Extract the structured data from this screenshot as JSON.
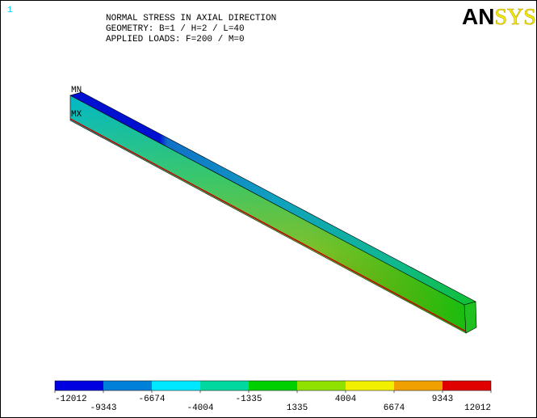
{
  "window_number": "1",
  "header": {
    "lines": [
      "NORMAL STRESS IN AXIAL DIRECTION",
      "GEOMETRY: B=1 / H=2 / L=40",
      "APPLIED LOADS: F=200 / M=0"
    ]
  },
  "logo": {
    "parts": [
      "AN",
      "SYS"
    ]
  },
  "markers": {
    "min": "MN",
    "max": "MX"
  },
  "contour_legend": {
    "colors": [
      "#0000e0",
      "#0080d8",
      "#00e8ff",
      "#00d8a0",
      "#00d000",
      "#90e000",
      "#f0f000",
      "#f0a000",
      "#e00000"
    ],
    "labels": [
      -12012,
      -9343,
      -6674,
      -4004,
      -1335,
      1335,
      4004,
      6674,
      9343,
      12012
    ]
  }
}
